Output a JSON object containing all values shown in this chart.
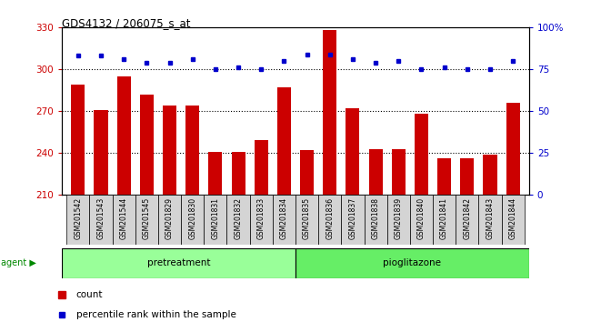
{
  "title": "GDS4132 / 206075_s_at",
  "samples": [
    "GSM201542",
    "GSM201543",
    "GSM201544",
    "GSM201545",
    "GSM201829",
    "GSM201830",
    "GSM201831",
    "GSM201832",
    "GSM201833",
    "GSM201834",
    "GSM201835",
    "GSM201836",
    "GSM201837",
    "GSM201838",
    "GSM201839",
    "GSM201840",
    "GSM201841",
    "GSM201842",
    "GSM201843",
    "GSM201844"
  ],
  "counts": [
    289,
    271,
    295,
    282,
    274,
    274,
    241,
    241,
    249,
    287,
    242,
    328,
    272,
    243,
    243,
    268,
    236,
    236,
    239,
    276
  ],
  "percentiles": [
    83,
    83,
    81,
    79,
    79,
    81,
    75,
    76,
    75,
    80,
    84,
    84,
    81,
    79,
    80,
    75,
    76,
    75,
    75,
    80
  ],
  "pretreatment_count": 10,
  "pioglitazone_count": 10,
  "ylim_left": [
    210,
    330
  ],
  "ylim_right": [
    0,
    100
  ],
  "yticks_left": [
    210,
    240,
    270,
    300,
    330
  ],
  "yticks_right": [
    0,
    25,
    50,
    75,
    100
  ],
  "bar_color": "#cc0000",
  "dot_color": "#0000cc",
  "pretreatment_color": "#99ff99",
  "pioglitazone_color": "#66ee66",
  "agent_label_color": "#008800",
  "tick_label_color_left": "#cc0000",
  "tick_label_color_right": "#0000cc",
  "bar_width": 0.6,
  "grid_linestyle": "dotted",
  "grid_linewidth": 0.8,
  "ytick_grid": [
    300,
    270,
    240
  ]
}
